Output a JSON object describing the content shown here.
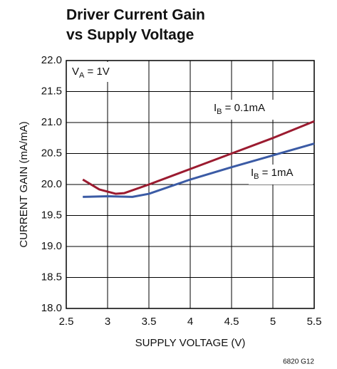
{
  "chart_data": {
    "type": "line",
    "title": [
      "Driver Current Gain",
      "vs Supply Voltage"
    ],
    "xlabel": "SUPPLY VOLTAGE (V)",
    "ylabel": "CURRENT GAIN (mA/mA)",
    "annotation": "VA = 1V",
    "footnote": "6820 G12",
    "xlim": [
      2.5,
      5.5
    ],
    "xticks": [
      2.5,
      3,
      3.5,
      4,
      4.5,
      5,
      5.5
    ],
    "ylim": [
      18,
      22
    ],
    "yticks": [
      {
        "value": 18,
        "label": "18.0"
      },
      {
        "value": 18.5,
        "label": "18.5"
      },
      {
        "value": 19,
        "label": "19.0"
      },
      {
        "value": 19.5,
        "label": "19.5"
      },
      {
        "value": 20,
        "label": "20.0"
      },
      {
        "value": 20.5,
        "label": "20.5"
      },
      {
        "value": 21,
        "label": "21.0"
      },
      {
        "value": 21.5,
        "label": "21.5"
      },
      {
        "value": 22,
        "label": "22.0"
      }
    ],
    "grid": true,
    "series": [
      {
        "name": "IB = 0.1mA",
        "color": "#9b1b30",
        "x": [
          2.7,
          2.9,
          3.1,
          3.2,
          3.5,
          4.0,
          4.5,
          5.0,
          5.5
        ],
        "values": [
          20.08,
          19.92,
          19.85,
          19.86,
          20.0,
          20.25,
          20.5,
          20.75,
          21.02
        ]
      },
      {
        "name": "IB = 1mA",
        "color": "#3b5ba5",
        "x": [
          2.7,
          3.0,
          3.3,
          3.5,
          4.0,
          4.5,
          5.0,
          5.5
        ],
        "values": [
          19.8,
          19.81,
          19.8,
          19.85,
          20.08,
          20.28,
          20.47,
          20.66
        ]
      }
    ]
  }
}
